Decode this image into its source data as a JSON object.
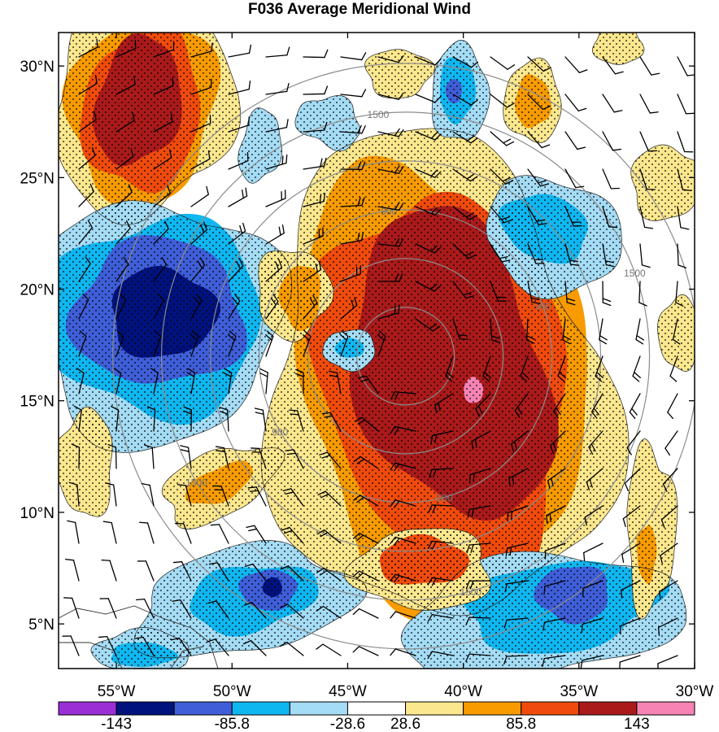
{
  "chart_data": {
    "type": "heatmap",
    "title": "F036 Average Meridional Wind",
    "map": {
      "lon_range": [
        -57.5,
        -30
      ],
      "lat_range": [
        3,
        31.5
      ],
      "x_ticks": [
        {
          "value": -55,
          "label": "55°W"
        },
        {
          "value": -50,
          "label": "50°W"
        },
        {
          "value": -45,
          "label": "45°W"
        },
        {
          "value": -40,
          "label": "40°W"
        },
        {
          "value": -35,
          "label": "35°W"
        },
        {
          "value": -30,
          "label": "30°W"
        }
      ],
      "y_ticks": [
        {
          "value": 30,
          "label": "30°N"
        },
        {
          "value": 25,
          "label": "25°N"
        },
        {
          "value": 20,
          "label": "20°N"
        },
        {
          "value": 15,
          "label": "15°N"
        },
        {
          "value": 10,
          "label": "10°N"
        },
        {
          "value": 5,
          "label": "5°N"
        }
      ],
      "stippling": "dotted where |v| exceeds the ±28.6 contour",
      "wind_barbs": true,
      "range_rings_center": {
        "lon": -42.5,
        "lat": 17
      },
      "range_rings": [
        {
          "radius_km": 300,
          "label": ""
        },
        {
          "radius_km": 600,
          "label": ""
        },
        {
          "radius_km": 900,
          "label": "900"
        },
        {
          "radius_km": 1200,
          "label": ""
        },
        {
          "radius_km": 1500,
          "label": "1500"
        },
        {
          "radius_km": 1800,
          "label": ""
        }
      ]
    },
    "colorbar": {
      "levels": [
        -143,
        -114.4,
        -85.8,
        -57.2,
        -28.6,
        28.6,
        57.2,
        85.8,
        114.4,
        143
      ],
      "tick_labels": [
        {
          "value": -143,
          "label": "-143"
        },
        {
          "value": -85.8,
          "label": "-85.8"
        },
        {
          "value": -28.6,
          "label": "-28.6"
        },
        {
          "value": 28.6,
          "label": "28.6"
        },
        {
          "value": 85.8,
          "label": "85.8"
        },
        {
          "value": 143,
          "label": "143"
        }
      ],
      "colors": [
        "#9a2fd6",
        "#00127e",
        "#3f5ed8",
        "#0fb7f1",
        "#a5dcf5",
        "#ffffff",
        "#fbe78e",
        "#f79b00",
        "#f04b0c",
        "#aa1a1a",
        "#f683b4"
      ]
    },
    "features": [
      {
        "name": "central-positive-core",
        "sign": "positive",
        "lon": -39.2,
        "lat": 16,
        "peak": 150
      },
      {
        "name": "northwest-positive-max",
        "sign": "positive",
        "lon": -54,
        "lat": 27.8,
        "peak": 125
      },
      {
        "name": "west-negative-min",
        "sign": "negative",
        "lon": -54,
        "lat": 18.5,
        "peak": -142
      },
      {
        "name": "south-negative-min",
        "sign": "negative",
        "lon": -48,
        "lat": 6.5,
        "peak": -128
      },
      {
        "name": "southeast-negative-min",
        "sign": "negative",
        "lon": -34,
        "lat": 7,
        "peak": -110
      },
      {
        "name": "northeast-negative-min",
        "sign": "negative",
        "lon": -35.5,
        "lat": 22.5,
        "peak": -70
      },
      {
        "name": "north-negative-min",
        "sign": "negative",
        "lon": -40.5,
        "lat": 28,
        "peak": -95
      },
      {
        "name": "northeast-positive-max",
        "sign": "positive",
        "lon": -37,
        "lat": 28.5,
        "peak": 90
      }
    ]
  }
}
